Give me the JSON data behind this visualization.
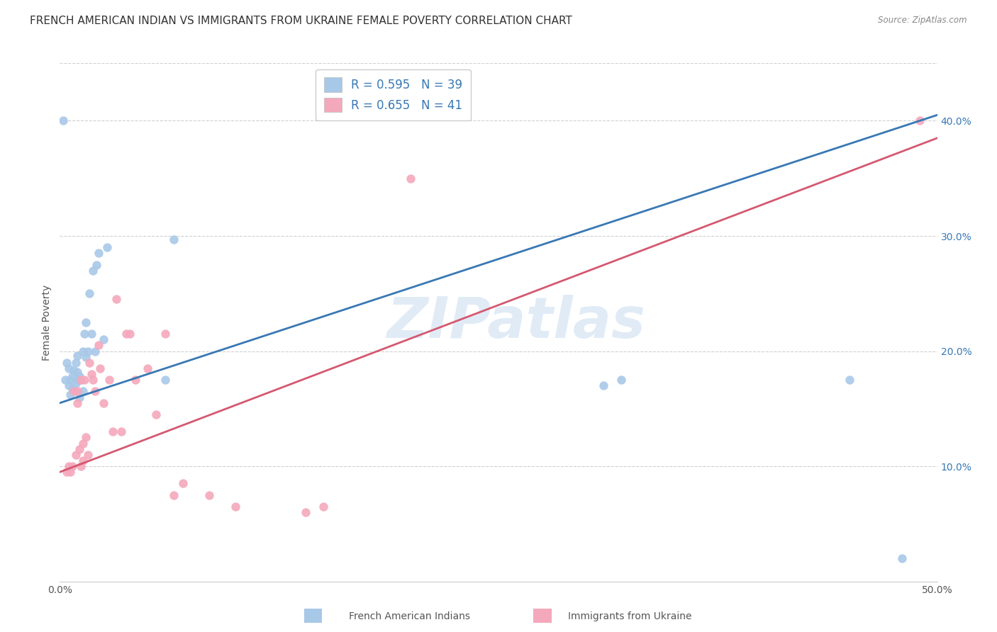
{
  "title": "FRENCH AMERICAN INDIAN VS IMMIGRANTS FROM UKRAINE FEMALE POVERTY CORRELATION CHART",
  "source": "Source: ZipAtlas.com",
  "ylabel": "Female Poverty",
  "xlim": [
    0,
    0.5
  ],
  "ylim": [
    0,
    0.45
  ],
  "xticks": [
    0.0,
    0.1,
    0.2,
    0.3,
    0.4,
    0.5
  ],
  "xticklabels": [
    "0.0%",
    "",
    "",
    "",
    "",
    "50.0%"
  ],
  "yticks_right": [
    0.1,
    0.2,
    0.3,
    0.4
  ],
  "ytick_right_labels": [
    "10.0%",
    "20.0%",
    "30.0%",
    "40.0%"
  ],
  "blue_color": "#a8c8e8",
  "pink_color": "#f4a8bc",
  "blue_line_color": "#3878b4",
  "pink_line_color": "#d45870",
  "blue_R": 0.595,
  "blue_N": 39,
  "pink_R": 0.655,
  "pink_N": 41,
  "blue_line_x0": 0.0,
  "blue_line_y0": 0.155,
  "blue_line_x1": 0.5,
  "blue_line_y1": 0.405,
  "pink_line_x0": 0.0,
  "pink_line_y0": 0.095,
  "pink_line_x1": 0.5,
  "pink_line_y1": 0.385,
  "blue_scatter_x": [
    0.003,
    0.004,
    0.005,
    0.005,
    0.006,
    0.006,
    0.007,
    0.007,
    0.008,
    0.008,
    0.009,
    0.009,
    0.01,
    0.01,
    0.01,
    0.011,
    0.011,
    0.012,
    0.013,
    0.013,
    0.014,
    0.015,
    0.015,
    0.016,
    0.017,
    0.018,
    0.019,
    0.02,
    0.021,
    0.022,
    0.025,
    0.027,
    0.06,
    0.065,
    0.31,
    0.32,
    0.45,
    0.48,
    0.002
  ],
  "blue_scatter_y": [
    0.175,
    0.19,
    0.17,
    0.185,
    0.162,
    0.175,
    0.168,
    0.178,
    0.165,
    0.183,
    0.172,
    0.19,
    0.175,
    0.182,
    0.196,
    0.16,
    0.178,
    0.175,
    0.165,
    0.2,
    0.215,
    0.195,
    0.225,
    0.2,
    0.25,
    0.215,
    0.27,
    0.2,
    0.275,
    0.285,
    0.21,
    0.29,
    0.175,
    0.297,
    0.17,
    0.175,
    0.175,
    0.02,
    0.4
  ],
  "pink_scatter_x": [
    0.004,
    0.005,
    0.006,
    0.007,
    0.008,
    0.009,
    0.01,
    0.01,
    0.011,
    0.012,
    0.012,
    0.013,
    0.013,
    0.014,
    0.015,
    0.016,
    0.017,
    0.018,
    0.019,
    0.02,
    0.022,
    0.023,
    0.025,
    0.028,
    0.03,
    0.032,
    0.035,
    0.038,
    0.04,
    0.043,
    0.05,
    0.055,
    0.06,
    0.065,
    0.07,
    0.085,
    0.1,
    0.14,
    0.15,
    0.2,
    0.49
  ],
  "pink_scatter_y": [
    0.095,
    0.1,
    0.095,
    0.1,
    0.165,
    0.11,
    0.155,
    0.165,
    0.115,
    0.1,
    0.175,
    0.105,
    0.12,
    0.175,
    0.125,
    0.11,
    0.19,
    0.18,
    0.175,
    0.165,
    0.205,
    0.185,
    0.155,
    0.175,
    0.13,
    0.245,
    0.13,
    0.215,
    0.215,
    0.175,
    0.185,
    0.145,
    0.215,
    0.075,
    0.085,
    0.075,
    0.065,
    0.06,
    0.065,
    0.35,
    0.4
  ],
  "watermark_text": "ZIPatlas",
  "grid_color": "#d0d0d0",
  "background_color": "#ffffff",
  "title_fontsize": 11,
  "axis_label_fontsize": 10,
  "tick_fontsize": 10,
  "legend_text_color": "#3878b4"
}
